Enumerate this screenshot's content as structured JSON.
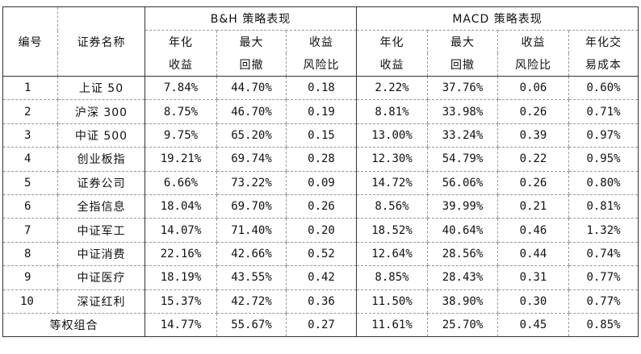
{
  "group_headers": {
    "bh": "B&H 策略表现",
    "macd": "MACD 策略表现"
  },
  "col_headers": {
    "id": "编号",
    "name": "证券名称",
    "bh_ret_1": "年化",
    "bh_ret_2": "收益",
    "bh_dd_1": "最大",
    "bh_dd_2": "回撤",
    "bh_rr_1": "收益",
    "bh_rr_2": "风险比",
    "m_ret_1": "年化",
    "m_ret_2": "收益",
    "m_dd_1": "最大",
    "m_dd_2": "回撤",
    "m_rr_1": "收益",
    "m_rr_2": "风险比",
    "m_cost_1": "年化交",
    "m_cost_2": "易成本"
  },
  "rows": [
    {
      "id": "1",
      "name": "上证 50",
      "bh_ret": "7.84%",
      "bh_dd": "44.70%",
      "bh_rr": "0.18",
      "m_ret": "2.22%",
      "m_dd": "37.76%",
      "m_rr": "0.06",
      "m_cost": "0.60%"
    },
    {
      "id": "2",
      "name": "沪深 300",
      "bh_ret": "8.75%",
      "bh_dd": "46.70%",
      "bh_rr": "0.19",
      "m_ret": "8.81%",
      "m_dd": "33.98%",
      "m_rr": "0.26",
      "m_cost": "0.71%"
    },
    {
      "id": "3",
      "name": "中证 500",
      "bh_ret": "9.75%",
      "bh_dd": "65.20%",
      "bh_rr": "0.15",
      "m_ret": "13.00%",
      "m_dd": "33.24%",
      "m_rr": "0.39",
      "m_cost": "0.97%"
    },
    {
      "id": "4",
      "name": "创业板指",
      "bh_ret": "19.21%",
      "bh_dd": "69.74%",
      "bh_rr": "0.28",
      "m_ret": "12.30%",
      "m_dd": "54.79%",
      "m_rr": "0.22",
      "m_cost": "0.95%"
    },
    {
      "id": "5",
      "name": "证券公司",
      "bh_ret": "6.66%",
      "bh_dd": "73.22%",
      "bh_rr": "0.09",
      "m_ret": "14.72%",
      "m_dd": "56.06%",
      "m_rr": "0.26",
      "m_cost": "0.80%"
    },
    {
      "id": "6",
      "name": "全指信息",
      "bh_ret": "18.04%",
      "bh_dd": "69.70%",
      "bh_rr": "0.26",
      "m_ret": "8.56%",
      "m_dd": "39.99%",
      "m_rr": "0.21",
      "m_cost": "0.81%"
    },
    {
      "id": "7",
      "name": "中证军工",
      "bh_ret": "14.07%",
      "bh_dd": "71.40%",
      "bh_rr": "0.20",
      "m_ret": "18.52%",
      "m_dd": "40.64%",
      "m_rr": "0.46",
      "m_cost": "1.32%"
    },
    {
      "id": "8",
      "name": "中证消费",
      "bh_ret": "22.16%",
      "bh_dd": "42.66%",
      "bh_rr": "0.52",
      "m_ret": "12.64%",
      "m_dd": "28.56%",
      "m_rr": "0.44",
      "m_cost": "0.74%"
    },
    {
      "id": "9",
      "name": "中证医疗",
      "bh_ret": "18.19%",
      "bh_dd": "43.55%",
      "bh_rr": "0.42",
      "m_ret": "8.85%",
      "m_dd": "28.43%",
      "m_rr": "0.31",
      "m_cost": "0.77%"
    },
    {
      "id": "10",
      "name": "深证红利",
      "bh_ret": "15.37%",
      "bh_dd": "42.72%",
      "bh_rr": "0.36",
      "m_ret": "11.50%",
      "m_dd": "38.90%",
      "m_rr": "0.30",
      "m_cost": "0.77%"
    }
  ],
  "total_row": {
    "label": "等权组合",
    "bh_ret": "14.77%",
    "bh_dd": "55.67%",
    "bh_rr": "0.27",
    "m_ret": "11.61%",
    "m_dd": "25.70%",
    "m_rr": "0.45",
    "m_cost": "0.85%"
  }
}
